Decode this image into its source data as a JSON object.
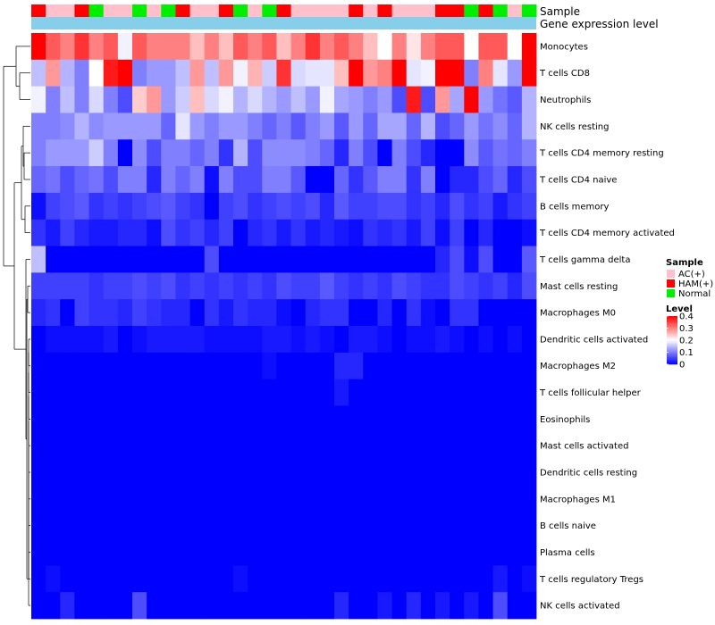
{
  "chart_data": {
    "type": "heatmap",
    "annotation_labels": {
      "sample": "Sample",
      "gene": "Gene expression level"
    },
    "colors": {
      "AC(+)": "#ffc0cb",
      "HAM(+)": "#ff0000",
      "Normal": "#00ee00",
      "gene_bar": "#87ceeb",
      "low": "#0000ff",
      "mid": "#ffffff",
      "high": "#ff0000",
      "background": "#ffffff"
    },
    "samples": [
      "HAM(+)",
      "AC(+)",
      "AC(+)",
      "HAM(+)",
      "Normal",
      "AC(+)",
      "AC(+)",
      "Normal",
      "AC(+)",
      "Normal",
      "HAM(+)",
      "AC(+)",
      "AC(+)",
      "HAM(+)",
      "Normal",
      "AC(+)",
      "Normal",
      "HAM(+)",
      "AC(+)",
      "AC(+)",
      "AC(+)",
      "AC(+)",
      "HAM(+)",
      "AC(+)",
      "HAM(+)",
      "AC(+)",
      "AC(+)",
      "AC(+)",
      "HAM(+)",
      "HAM(+)",
      "Normal",
      "HAM(+)",
      "Normal",
      "AC(+)",
      "Normal"
    ],
    "rows": [
      "Monocytes",
      "T cells CD8",
      "Neutrophils",
      "NK cells resting",
      "T cells CD4 memory resting",
      "T cells CD4 naive",
      "B cells memory",
      "T cells CD4 memory activated",
      "T cells gamma delta",
      "Mast cells resting",
      "Macrophages M0",
      "Dendritic cells activated",
      "Macrophages M2",
      "T cells follicular helper",
      "Eosinophils",
      "Mast cells activated",
      "Dendritic cells resting",
      "Macrophages M1",
      "B cells naive",
      "Plasma cells",
      "T cells regulatory  Tregs",
      "NK cells activated"
    ],
    "values": [
      [
        0.4,
        0.33,
        0.3,
        0.36,
        0.3,
        0.33,
        0.19,
        0.33,
        0.3,
        0.3,
        0.3,
        0.25,
        0.3,
        0.25,
        0.33,
        0.3,
        0.33,
        0.25,
        0.3,
        0.36,
        0.3,
        0.33,
        0.3,
        0.25,
        0.2,
        0.3,
        0.22,
        0.3,
        0.33,
        0.33,
        0.2,
        0.33,
        0.33,
        0.2,
        0.4
      ],
      [
        0.15,
        0.28,
        0.14,
        0.1,
        0.2,
        0.38,
        0.4,
        0.1,
        0.12,
        0.12,
        0.15,
        0.28,
        0.15,
        0.28,
        0.19,
        0.26,
        0.16,
        0.36,
        0.17,
        0.18,
        0.18,
        0.25,
        0.4,
        0.28,
        0.3,
        0.4,
        0.18,
        0.19,
        0.4,
        0.4,
        0.1,
        0.3,
        0.18,
        0.12,
        0.4
      ],
      [
        0.19,
        0.1,
        0.15,
        0.1,
        0.17,
        0.1,
        0.06,
        0.24,
        0.28,
        0.12,
        0.16,
        0.25,
        0.17,
        0.19,
        0.14,
        0.17,
        0.14,
        0.12,
        0.15,
        0.12,
        0.19,
        0.13,
        0.12,
        0.1,
        0.12,
        0.06,
        0.38,
        0.06,
        0.28,
        0.13,
        0.4,
        0.12,
        0.09,
        0.07,
        0.14
      ],
      [
        0.1,
        0.1,
        0.11,
        0.14,
        0.11,
        0.12,
        0.12,
        0.12,
        0.12,
        0.08,
        0.18,
        0.12,
        0.1,
        0.12,
        0.12,
        0.1,
        0.08,
        0.1,
        0.07,
        0.1,
        0.12,
        0.07,
        0.12,
        0.08,
        0.13,
        0.13,
        0.08,
        0.14,
        0.06,
        0.08,
        0.12,
        0.09,
        0.11,
        0.08,
        0.14
      ],
      [
        0.1,
        0.12,
        0.12,
        0.12,
        0.16,
        0.1,
        0.0,
        0.11,
        0.06,
        0.1,
        0.1,
        0.08,
        0.1,
        0.04,
        0.14,
        0.06,
        0.11,
        0.11,
        0.11,
        0.1,
        0.08,
        0.03,
        0.1,
        0.06,
        0.0,
        0.1,
        0.06,
        0.03,
        0.0,
        0.0,
        0.11,
        0.07,
        0.09,
        0.08,
        0.1
      ],
      [
        0.08,
        0.09,
        0.06,
        0.08,
        0.09,
        0.06,
        0.1,
        0.1,
        0.03,
        0.1,
        0.08,
        0.1,
        0.01,
        0.1,
        0.06,
        0.06,
        0.1,
        0.1,
        0.07,
        0.0,
        0.0,
        0.08,
        0.04,
        0.07,
        0.1,
        0.1,
        0.04,
        0.1,
        0.0,
        0.03,
        0.03,
        0.06,
        0.08,
        0.03,
        0.06
      ],
      [
        0.01,
        0.05,
        0.06,
        0.07,
        0.04,
        0.05,
        0.04,
        0.05,
        0.06,
        0.07,
        0.05,
        0.04,
        0.0,
        0.05,
        0.06,
        0.04,
        0.05,
        0.06,
        0.05,
        0.06,
        0.03,
        0.07,
        0.05,
        0.05,
        0.06,
        0.06,
        0.04,
        0.05,
        0.03,
        0.06,
        0.04,
        0.05,
        0.02,
        0.04,
        0.05
      ],
      [
        0.04,
        0.02,
        0.05,
        0.03,
        0.02,
        0.02,
        0.03,
        0.03,
        0.01,
        0.06,
        0.04,
        0.05,
        0.03,
        0.05,
        0.0,
        0.03,
        0.04,
        0.02,
        0.04,
        0.02,
        0.03,
        0.02,
        0.01,
        0.04,
        0.03,
        0.04,
        0.02,
        0.05,
        0.01,
        0.05,
        0.0,
        0.03,
        0.0,
        0.0,
        0.01
      ],
      [
        0.15,
        0.0,
        0.0,
        0.0,
        0.0,
        0.0,
        0.0,
        0.0,
        0.0,
        0.0,
        0.0,
        0.0,
        0.06,
        0.0,
        0.0,
        0.0,
        0.0,
        0.0,
        0.0,
        0.0,
        0.0,
        0.0,
        0.0,
        0.0,
        0.0,
        0.0,
        0.0,
        0.0,
        0.03,
        0.06,
        0.01,
        0.06,
        0.0,
        0.0,
        0.07
      ],
      [
        0.05,
        0.05,
        0.05,
        0.05,
        0.04,
        0.05,
        0.05,
        0.06,
        0.05,
        0.06,
        0.04,
        0.05,
        0.04,
        0.05,
        0.04,
        0.05,
        0.04,
        0.06,
        0.05,
        0.05,
        0.07,
        0.05,
        0.04,
        0.05,
        0.04,
        0.06,
        0.05,
        0.04,
        0.04,
        0.06,
        0.05,
        0.04,
        0.05,
        0.03,
        0.06
      ],
      [
        0.03,
        0.04,
        0.0,
        0.05,
        0.04,
        0.04,
        0.03,
        0.05,
        0.04,
        0.03,
        0.03,
        0.0,
        0.04,
        0.02,
        0.04,
        0.03,
        0.03,
        0.01,
        0.0,
        0.03,
        0.04,
        0.04,
        0.0,
        0.0,
        0.03,
        0.0,
        0.04,
        0.01,
        0.0,
        0.04,
        0.04,
        0.0,
        0.0,
        0.0,
        0.0
      ],
      [
        0.0,
        0.01,
        0.01,
        0.01,
        0.01,
        0.02,
        0.0,
        0.01,
        0.02,
        0.02,
        0.02,
        0.02,
        0.01,
        0.01,
        0.01,
        0.01,
        0.02,
        0.02,
        0.01,
        0.02,
        0.01,
        0.0,
        0.02,
        0.02,
        0.01,
        0.0,
        0.01,
        0.01,
        0.02,
        0.01,
        0.0,
        0.01,
        0.0,
        0.01,
        0.0
      ],
      [
        0.0,
        0.0,
        0.0,
        0.0,
        0.0,
        0.0,
        0.0,
        0.0,
        0.0,
        0.0,
        0.0,
        0.0,
        0.0,
        0.0,
        0.0,
        0.0,
        0.01,
        0.0,
        0.0,
        0.0,
        0.0,
        0.03,
        0.03,
        0.0,
        0.0,
        0.0,
        0.0,
        0.0,
        0.0,
        0.0,
        0.0,
        0.0,
        0.0,
        0.0,
        0.0
      ],
      [
        0.0,
        0.0,
        0.0,
        0.0,
        0.0,
        0.0,
        0.0,
        0.0,
        0.0,
        0.0,
        0.0,
        0.0,
        0.0,
        0.0,
        0.0,
        0.0,
        0.0,
        0.0,
        0.0,
        0.0,
        0.0,
        0.02,
        0.0,
        0.0,
        0.0,
        0.0,
        0.0,
        0.0,
        0.0,
        0.0,
        0.0,
        0.0,
        0.0,
        0.0,
        0.0
      ],
      [
        0.0,
        0.0,
        0.0,
        0.0,
        0.0,
        0.0,
        0.0,
        0.0,
        0.0,
        0.0,
        0.0,
        0.0,
        0.0,
        0.0,
        0.0,
        0.0,
        0.0,
        0.0,
        0.0,
        0.0,
        0.0,
        0.0,
        0.0,
        0.0,
        0.0,
        0.0,
        0.0,
        0.0,
        0.0,
        0.0,
        0.0,
        0.0,
        0.0,
        0.0,
        0.0
      ],
      [
        0.0,
        0.0,
        0.0,
        0.0,
        0.0,
        0.0,
        0.0,
        0.0,
        0.0,
        0.0,
        0.0,
        0.0,
        0.0,
        0.0,
        0.0,
        0.0,
        0.0,
        0.0,
        0.0,
        0.0,
        0.0,
        0.0,
        0.0,
        0.0,
        0.0,
        0.0,
        0.0,
        0.0,
        0.0,
        0.0,
        0.0,
        0.0,
        0.0,
        0.0,
        0.0
      ],
      [
        0.0,
        0.0,
        0.0,
        0.0,
        0.0,
        0.0,
        0.0,
        0.0,
        0.0,
        0.0,
        0.0,
        0.0,
        0.0,
        0.0,
        0.0,
        0.0,
        0.0,
        0.0,
        0.0,
        0.0,
        0.0,
        0.0,
        0.0,
        0.0,
        0.0,
        0.0,
        0.0,
        0.0,
        0.0,
        0.0,
        0.0,
        0.0,
        0.0,
        0.0,
        0.0
      ],
      [
        0.0,
        0.0,
        0.0,
        0.0,
        0.0,
        0.0,
        0.0,
        0.0,
        0.0,
        0.0,
        0.0,
        0.0,
        0.0,
        0.0,
        0.0,
        0.0,
        0.0,
        0.0,
        0.0,
        0.0,
        0.0,
        0.0,
        0.0,
        0.0,
        0.0,
        0.0,
        0.0,
        0.0,
        0.0,
        0.0,
        0.0,
        0.0,
        0.0,
        0.0,
        0.0
      ],
      [
        0.0,
        0.0,
        0.0,
        0.0,
        0.0,
        0.0,
        0.0,
        0.0,
        0.0,
        0.0,
        0.0,
        0.0,
        0.0,
        0.0,
        0.0,
        0.0,
        0.0,
        0.0,
        0.0,
        0.0,
        0.0,
        0.0,
        0.0,
        0.0,
        0.0,
        0.0,
        0.0,
        0.0,
        0.0,
        0.0,
        0.0,
        0.0,
        0.0,
        0.0,
        0.0
      ],
      [
        0.0,
        0.0,
        0.0,
        0.0,
        0.0,
        0.0,
        0.0,
        0.0,
        0.0,
        0.0,
        0.0,
        0.0,
        0.0,
        0.0,
        0.0,
        0.0,
        0.0,
        0.0,
        0.0,
        0.0,
        0.0,
        0.0,
        0.0,
        0.0,
        0.0,
        0.0,
        0.0,
        0.0,
        0.0,
        0.0,
        0.0,
        0.0,
        0.0,
        0.0,
        0.0
      ],
      [
        0.0,
        0.01,
        0.0,
        0.0,
        0.0,
        0.0,
        0.0,
        0.0,
        0.0,
        0.0,
        0.0,
        0.0,
        0.0,
        0.0,
        0.01,
        0.0,
        0.0,
        0.0,
        0.0,
        0.0,
        0.0,
        0.0,
        0.0,
        0.0,
        0.0,
        0.0,
        0.0,
        0.0,
        0.0,
        0.0,
        0.0,
        0.0,
        0.02,
        0.0,
        0.01
      ],
      [
        0.0,
        0.0,
        0.03,
        0.0,
        0.0,
        0.0,
        0.0,
        0.06,
        0.0,
        0.0,
        0.0,
        0.0,
        0.0,
        0.0,
        0.0,
        0.0,
        0.0,
        0.0,
        0.0,
        0.0,
        0.0,
        0.03,
        0.0,
        0.0,
        0.02,
        0.0,
        0.03,
        0.0,
        0.02,
        0.0,
        0.02,
        0.0,
        0.06,
        0.0,
        0.0
      ]
    ],
    "legend": {
      "sample_title": "Sample",
      "sample_entries": [
        "AC(+)",
        "HAM(+)",
        "Normal"
      ],
      "level_title": "Level",
      "level_ticks": [
        "0.4",
        "0.3",
        "0.2",
        "0.1",
        "0"
      ],
      "level_range": [
        0,
        0.4
      ]
    },
    "dendrogram": "row clustering tree on left"
  }
}
